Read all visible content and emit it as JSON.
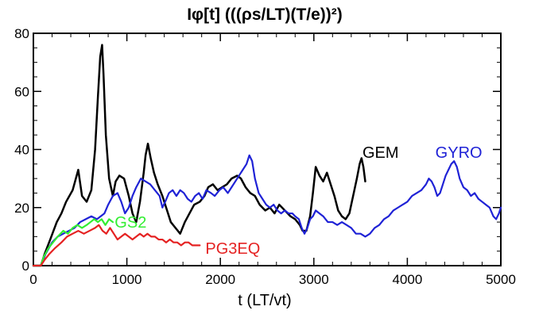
{
  "chart_data": {
    "type": "line",
    "title": "Iφ[t]  (((ρs/LT)(T/e))²)",
    "xlabel": "t  (LT/vt)",
    "ylabel": "",
    "xlim": [
      0,
      5000
    ],
    "ylim": [
      0,
      80
    ],
    "x_ticks": [
      0,
      1000,
      2000,
      3000,
      4000,
      5000
    ],
    "y_ticks": [
      0,
      20,
      40,
      60,
      80
    ],
    "x_tick_labels": [
      "0",
      "1000",
      "2000",
      "3000",
      "4000",
      "5000"
    ],
    "y_tick_labels": [
      "0",
      "20",
      "40",
      "60",
      "80"
    ],
    "grid": false,
    "legend": "inline labels",
    "series": [
      {
        "name": "GEM",
        "color": "#000000",
        "points": [
          [
            0,
            0
          ],
          [
            80,
            0
          ],
          [
            120,
            4
          ],
          [
            180,
            9
          ],
          [
            250,
            15
          ],
          [
            300,
            18
          ],
          [
            350,
            22
          ],
          [
            420,
            26
          ],
          [
            480,
            33
          ],
          [
            520,
            24
          ],
          [
            570,
            22
          ],
          [
            620,
            26
          ],
          [
            660,
            40
          ],
          [
            690,
            58
          ],
          [
            715,
            72
          ],
          [
            735,
            76
          ],
          [
            750,
            66
          ],
          [
            775,
            45
          ],
          [
            810,
            30
          ],
          [
            850,
            24
          ],
          [
            880,
            29
          ],
          [
            920,
            31
          ],
          [
            970,
            30
          ],
          [
            1020,
            24
          ],
          [
            1060,
            18
          ],
          [
            1100,
            15
          ],
          [
            1140,
            22
          ],
          [
            1180,
            32
          ],
          [
            1200,
            38
          ],
          [
            1225,
            42
          ],
          [
            1255,
            37
          ],
          [
            1290,
            32
          ],
          [
            1330,
            28
          ],
          [
            1380,
            24
          ],
          [
            1420,
            20
          ],
          [
            1470,
            15
          ],
          [
            1520,
            13
          ],
          [
            1570,
            11
          ],
          [
            1620,
            15
          ],
          [
            1670,
            18
          ],
          [
            1720,
            21
          ],
          [
            1780,
            22
          ],
          [
            1830,
            24
          ],
          [
            1870,
            27
          ],
          [
            1920,
            28
          ],
          [
            1970,
            26
          ],
          [
            2020,
            27
          ],
          [
            2070,
            28
          ],
          [
            2120,
            30
          ],
          [
            2180,
            31
          ],
          [
            2220,
            30
          ],
          [
            2270,
            27
          ],
          [
            2320,
            25
          ],
          [
            2370,
            24
          ],
          [
            2420,
            21
          ],
          [
            2480,
            19
          ],
          [
            2530,
            20
          ],
          [
            2580,
            18
          ],
          [
            2630,
            21
          ],
          [
            2690,
            19
          ],
          [
            2750,
            17
          ],
          [
            2800,
            16
          ],
          [
            2850,
            14
          ],
          [
            2880,
            12
          ],
          [
            2920,
            12
          ],
          [
            2960,
            17
          ],
          [
            2990,
            25
          ],
          [
            3020,
            34
          ],
          [
            3060,
            31
          ],
          [
            3100,
            29
          ],
          [
            3140,
            32
          ],
          [
            3180,
            28
          ],
          [
            3220,
            24
          ],
          [
            3260,
            19
          ],
          [
            3300,
            17
          ],
          [
            3340,
            16
          ],
          [
            3380,
            18
          ],
          [
            3420,
            24
          ],
          [
            3460,
            30
          ],
          [
            3490,
            35
          ],
          [
            3510,
            37
          ],
          [
            3530,
            34
          ],
          [
            3550,
            29
          ]
        ]
      },
      {
        "name": "GYRO",
        "color": "#1f22d6",
        "points": [
          [
            0,
            0
          ],
          [
            80,
            0
          ],
          [
            130,
            4
          ],
          [
            200,
            8
          ],
          [
            260,
            10
          ],
          [
            320,
            11
          ],
          [
            380,
            12
          ],
          [
            440,
            13
          ],
          [
            500,
            15
          ],
          [
            560,
            16
          ],
          [
            620,
            17
          ],
          [
            680,
            16
          ],
          [
            720,
            17
          ],
          [
            760,
            18
          ],
          [
            800,
            21
          ],
          [
            850,
            24
          ],
          [
            900,
            25
          ],
          [
            940,
            22
          ],
          [
            980,
            18
          ],
          [
            1020,
            20
          ],
          [
            1060,
            24
          ],
          [
            1100,
            27
          ],
          [
            1150,
            30
          ],
          [
            1200,
            29
          ],
          [
            1250,
            28
          ],
          [
            1300,
            26
          ],
          [
            1350,
            24
          ],
          [
            1380,
            20
          ],
          [
            1410,
            22
          ],
          [
            1450,
            25
          ],
          [
            1490,
            26
          ],
          [
            1530,
            24
          ],
          [
            1570,
            26
          ],
          [
            1610,
            25
          ],
          [
            1650,
            23
          ],
          [
            1690,
            22
          ],
          [
            1730,
            24
          ],
          [
            1770,
            25
          ],
          [
            1810,
            23
          ],
          [
            1850,
            26
          ],
          [
            1900,
            25
          ],
          [
            1940,
            24
          ],
          [
            1990,
            26
          ],
          [
            2030,
            27
          ],
          [
            2080,
            25
          ],
          [
            2120,
            27
          ],
          [
            2160,
            29
          ],
          [
            2200,
            31
          ],
          [
            2240,
            33
          ],
          [
            2280,
            35
          ],
          [
            2310,
            38
          ],
          [
            2340,
            36
          ],
          [
            2370,
            30
          ],
          [
            2410,
            25
          ],
          [
            2450,
            23
          ],
          [
            2490,
            21
          ],
          [
            2530,
            20
          ],
          [
            2570,
            21
          ],
          [
            2610,
            19
          ],
          [
            2650,
            18
          ],
          [
            2690,
            19
          ],
          [
            2730,
            18
          ],
          [
            2770,
            18
          ],
          [
            2800,
            17
          ],
          [
            2840,
            16
          ],
          [
            2870,
            13
          ],
          [
            2900,
            11
          ],
          [
            2930,
            13
          ],
          [
            2960,
            16
          ],
          [
            2990,
            17
          ],
          [
            3020,
            19
          ],
          [
            3060,
            18
          ],
          [
            3100,
            17
          ],
          [
            3150,
            15
          ],
          [
            3200,
            15
          ],
          [
            3250,
            14
          ],
          [
            3300,
            15
          ],
          [
            3350,
            14
          ],
          [
            3400,
            13
          ],
          [
            3450,
            11
          ],
          [
            3500,
            11
          ],
          [
            3550,
            10
          ],
          [
            3600,
            11
          ],
          [
            3650,
            13
          ],
          [
            3700,
            14
          ],
          [
            3750,
            16
          ],
          [
            3800,
            17
          ],
          [
            3850,
            19
          ],
          [
            3900,
            20
          ],
          [
            3950,
            21
          ],
          [
            4000,
            22
          ],
          [
            4050,
            24
          ],
          [
            4100,
            25
          ],
          [
            4150,
            26
          ],
          [
            4200,
            28
          ],
          [
            4230,
            30
          ],
          [
            4260,
            29
          ],
          [
            4290,
            27
          ],
          [
            4320,
            24
          ],
          [
            4350,
            25
          ],
          [
            4380,
            28
          ],
          [
            4410,
            31
          ],
          [
            4440,
            33
          ],
          [
            4470,
            35
          ],
          [
            4500,
            36
          ],
          [
            4530,
            34
          ],
          [
            4560,
            30
          ],
          [
            4600,
            27
          ],
          [
            4640,
            26
          ],
          [
            4680,
            24
          ],
          [
            4720,
            25
          ],
          [
            4760,
            23
          ],
          [
            4800,
            22
          ],
          [
            4840,
            21
          ],
          [
            4880,
            20
          ],
          [
            4920,
            17
          ],
          [
            4950,
            16
          ],
          [
            4980,
            18
          ],
          [
            5000,
            20
          ]
        ]
      },
      {
        "name": "GS2",
        "color": "#33ee33",
        "points": [
          [
            0,
            0
          ],
          [
            80,
            0
          ],
          [
            110,
            3
          ],
          [
            160,
            6
          ],
          [
            210,
            8
          ],
          [
            260,
            10
          ],
          [
            320,
            12
          ],
          [
            370,
            11
          ],
          [
            420,
            13
          ],
          [
            470,
            14
          ],
          [
            520,
            13
          ],
          [
            570,
            14
          ],
          [
            610,
            15
          ],
          [
            650,
            16
          ],
          [
            690,
            15
          ],
          [
            730,
            16
          ],
          [
            770,
            14
          ],
          [
            810,
            16
          ],
          [
            850,
            15
          ]
        ]
      },
      {
        "name": "PG3EQ",
        "color": "#e52222",
        "points": [
          [
            0,
            0
          ],
          [
            80,
            0
          ],
          [
            120,
            2
          ],
          [
            170,
            4
          ],
          [
            230,
            6
          ],
          [
            300,
            8
          ],
          [
            360,
            10
          ],
          [
            420,
            11
          ],
          [
            480,
            12
          ],
          [
            540,
            11
          ],
          [
            600,
            12
          ],
          [
            660,
            13
          ],
          [
            700,
            14
          ],
          [
            740,
            12
          ],
          [
            780,
            11
          ],
          [
            820,
            13
          ],
          [
            860,
            11
          ],
          [
            900,
            9
          ],
          [
            940,
            10
          ],
          [
            980,
            11
          ],
          [
            1020,
            10
          ],
          [
            1060,
            9
          ],
          [
            1100,
            10
          ],
          [
            1140,
            11
          ],
          [
            1180,
            10
          ],
          [
            1220,
            11
          ],
          [
            1260,
            10
          ],
          [
            1300,
            10
          ],
          [
            1340,
            9
          ],
          [
            1380,
            9
          ],
          [
            1420,
            8
          ],
          [
            1460,
            9
          ],
          [
            1500,
            8
          ],
          [
            1540,
            8
          ],
          [
            1580,
            7
          ],
          [
            1620,
            8
          ],
          [
            1660,
            8
          ],
          [
            1700,
            7
          ],
          [
            1740,
            7
          ],
          [
            1780,
            7
          ]
        ]
      }
    ],
    "annotations": [
      {
        "text": "GEM",
        "x": 3520,
        "y": 39,
        "color": "#000000"
      },
      {
        "text": "GYRO",
        "x": 4300,
        "y": 39,
        "color": "#1f22d6"
      },
      {
        "text": "GS2",
        "x": 870,
        "y": 15,
        "color": "#33ee33"
      },
      {
        "text": "PG3EQ",
        "x": 1840,
        "y": 6,
        "color": "#e52222"
      }
    ]
  }
}
